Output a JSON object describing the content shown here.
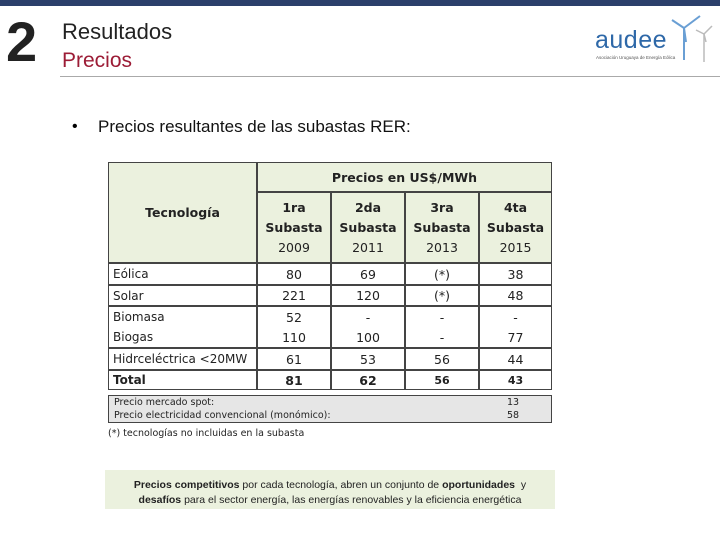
{
  "header": {
    "number": "2",
    "title": "Resultados",
    "subtitle": "Precios"
  },
  "logo": {
    "name": "audee",
    "tagline": "Asociación Uruguaya de Energía Eólica"
  },
  "bullet": "Precios resultantes de las subastas RER:",
  "table": {
    "group_header": "Precios en US$/MWh",
    "row_header": "Tecnología",
    "columns": [
      [
        "1ra",
        "Subasta",
        "2009"
      ],
      [
        "2da",
        "Subasta",
        "2011"
      ],
      [
        "3ra",
        "Subasta",
        "2013"
      ],
      [
        "4ta",
        "Subasta",
        "2015"
      ]
    ],
    "rows": [
      {
        "label": "Eólica",
        "cells": [
          "80",
          "69",
          "(*)",
          "38"
        ]
      },
      {
        "label": "Solar",
        "cells": [
          "221",
          "120",
          "(*)",
          "48"
        ]
      },
      {
        "label": "Biomasa",
        "cells": [
          "52",
          "-",
          "-",
          "-"
        ]
      },
      {
        "label": "Biogas",
        "cells": [
          "110",
          "100",
          "-",
          "77"
        ]
      },
      {
        "label": "Hidrceléctrica <20MW",
        "cells": [
          "61",
          "53",
          "56",
          "44"
        ]
      },
      {
        "label": "Total",
        "cells": [
          "81",
          "62",
          "56",
          "43"
        ],
        "bold": true
      }
    ],
    "notes": [
      {
        "label": "Precio mercado spot:",
        "value": "13"
      },
      {
        "label": "Precio electricidad convencional (monómico):",
        "value": "58"
      }
    ],
    "footnote": "(*) tecnologías no incluidas en la subasta"
  },
  "callout": [
    {
      "text": "Precios competitivos",
      "bold": true
    },
    {
      "text": " por cada tecnología, abren un conjunto de ",
      "bold": false
    },
    {
      "text": "oportunidades",
      "bold": true
    },
    {
      "text": "  y ",
      "bold": false
    },
    {
      "text": "desafíos",
      "bold": true
    },
    {
      "text": " para el sector energía, las energías renovables y la eficiencia energética",
      "bold": false
    }
  ]
}
